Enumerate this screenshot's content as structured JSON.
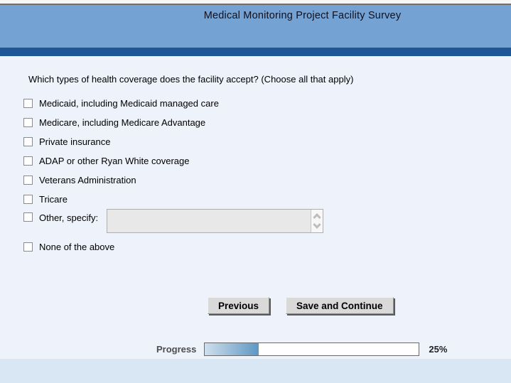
{
  "header": {
    "title": "Medical Monitoring Project Facility Survey"
  },
  "survey": {
    "question": "Which types of health coverage does the facility accept? (Choose all that apply)",
    "options": [
      {
        "label": "Medicaid, including Medicaid managed care",
        "checked": false
      },
      {
        "label": "Medicare, including Medicare Advantage",
        "checked": false
      },
      {
        "label": "Private insurance",
        "checked": false
      },
      {
        "label": "ADAP or other Ryan White coverage",
        "checked": false
      },
      {
        "label": "Veterans Administration",
        "checked": false
      },
      {
        "label": "Tricare",
        "checked": false
      },
      {
        "label": "Other, specify:",
        "checked": false,
        "text_input": {
          "value": "",
          "placeholder": ""
        }
      },
      {
        "label": "None of the above",
        "checked": false
      }
    ]
  },
  "buttons": {
    "previous": "Previous",
    "save_and_continue": "Save and Continue"
  },
  "progress": {
    "label": "Progress",
    "percent": 25,
    "percent_label": "25%"
  },
  "colors": {
    "header_bg": "#73a2d3",
    "divider_bar": "#1d5797",
    "content_bg": "#edf2fb",
    "footer_bg": "#d9e6f4",
    "progress_fill_start": "#cfdfec",
    "progress_fill_end": "#5e97c3",
    "button_bg": "#d9d9d9",
    "textarea_bg": "#e8e8e8"
  }
}
